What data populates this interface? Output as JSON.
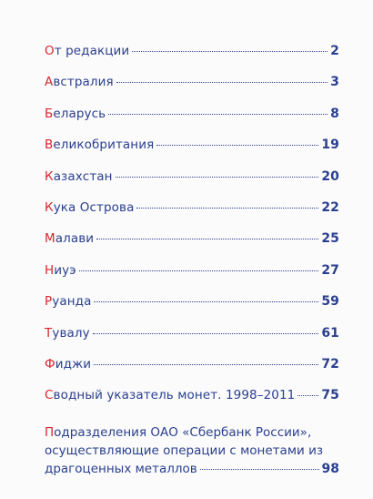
{
  "toc": {
    "entries": [
      {
        "first": "О",
        "rest": "т редакции",
        "page": "2"
      },
      {
        "first": "А",
        "rest": "встралия",
        "page": "3"
      },
      {
        "first": "Б",
        "rest": "еларусь",
        "page": "8"
      },
      {
        "first": "В",
        "rest": "еликобритания",
        "page": "19"
      },
      {
        "first": "К",
        "rest": "азахстан",
        "page": "20"
      },
      {
        "first": "К",
        "rest": "ука Острова",
        "page": "22"
      },
      {
        "first": "М",
        "rest": "алави",
        "page": "25"
      },
      {
        "first": "Н",
        "rest": "иуэ",
        "page": "27"
      },
      {
        "first": "Р",
        "rest": "уанда",
        "page": "59"
      },
      {
        "first": "Т",
        "rest": "увалу",
        "page": "61"
      },
      {
        "first": "Ф",
        "rest": "иджи",
        "page": "72"
      },
      {
        "first": "С",
        "rest": "водный указатель монет. 1998–2011",
        "page": "75"
      }
    ],
    "last_entry": {
      "first": "П",
      "line1_rest": "одразделения ОАО «Сбербанк России»,",
      "line2": "осуществляющие операции с монетами из",
      "line3": "драгоценных металлов",
      "page": "98"
    }
  }
}
